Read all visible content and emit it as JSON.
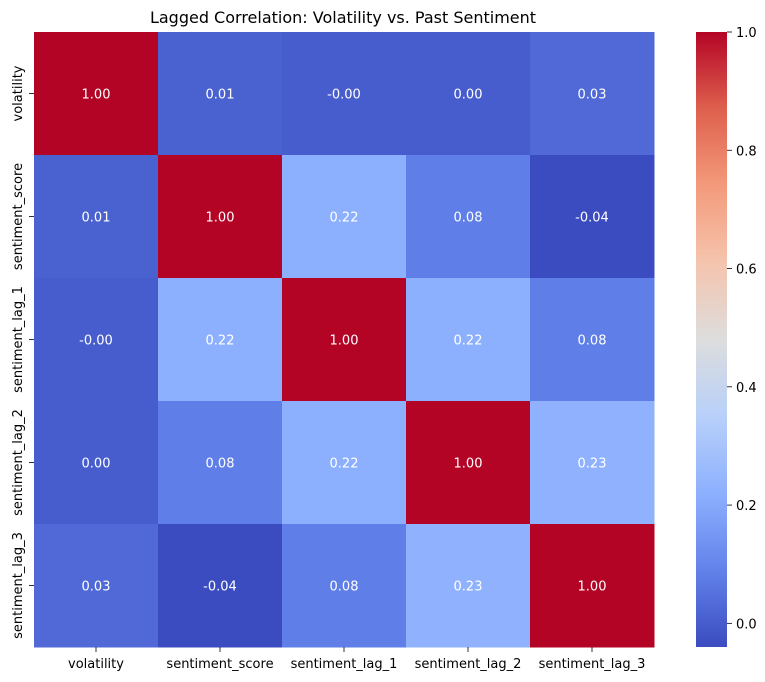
{
  "chart_data": {
    "type": "heatmap",
    "title": "Lagged Correlation: Volatility vs. Past Sentiment",
    "x_labels": [
      "volatility",
      "sentiment_score",
      "sentiment_lag_1",
      "sentiment_lag_2",
      "sentiment_lag_3"
    ],
    "y_labels": [
      "volatility",
      "sentiment_score",
      "sentiment_lag_1",
      "sentiment_lag_2",
      "sentiment_lag_3"
    ],
    "values": [
      [
        1.0,
        0.01,
        -0.0,
        0.0,
        0.03
      ],
      [
        0.01,
        1.0,
        0.22,
        0.08,
        -0.04
      ],
      [
        -0.0,
        0.22,
        1.0,
        0.22,
        0.08
      ],
      [
        0.0,
        0.08,
        0.22,
        1.0,
        0.23
      ],
      [
        0.03,
        -0.04,
        0.08,
        0.23,
        1.0
      ]
    ],
    "cell_labels": [
      [
        "1.00",
        "0.01",
        "-0.00",
        "0.00",
        "0.03"
      ],
      [
        "0.01",
        "1.00",
        "0.22",
        "0.08",
        "-0.04"
      ],
      [
        "-0.00",
        "0.22",
        "1.00",
        "0.22",
        "0.08"
      ],
      [
        "0.00",
        "0.08",
        "0.22",
        "1.00",
        "0.23"
      ],
      [
        "0.03",
        "-0.04",
        "0.08",
        "0.23",
        "1.00"
      ]
    ],
    "colormap": "coolwarm",
    "colorbar": {
      "range": [
        -0.04,
        1.0
      ],
      "ticks": [
        "0.0",
        "0.2",
        "0.4",
        "0.6",
        "0.8",
        "1.0"
      ],
      "tick_values": [
        0.0,
        0.2,
        0.4,
        0.6,
        0.8,
        1.0
      ]
    },
    "colors": {
      "low": "#3b4cc0",
      "mid": "#dddddd",
      "high": "#b40426"
    }
  }
}
